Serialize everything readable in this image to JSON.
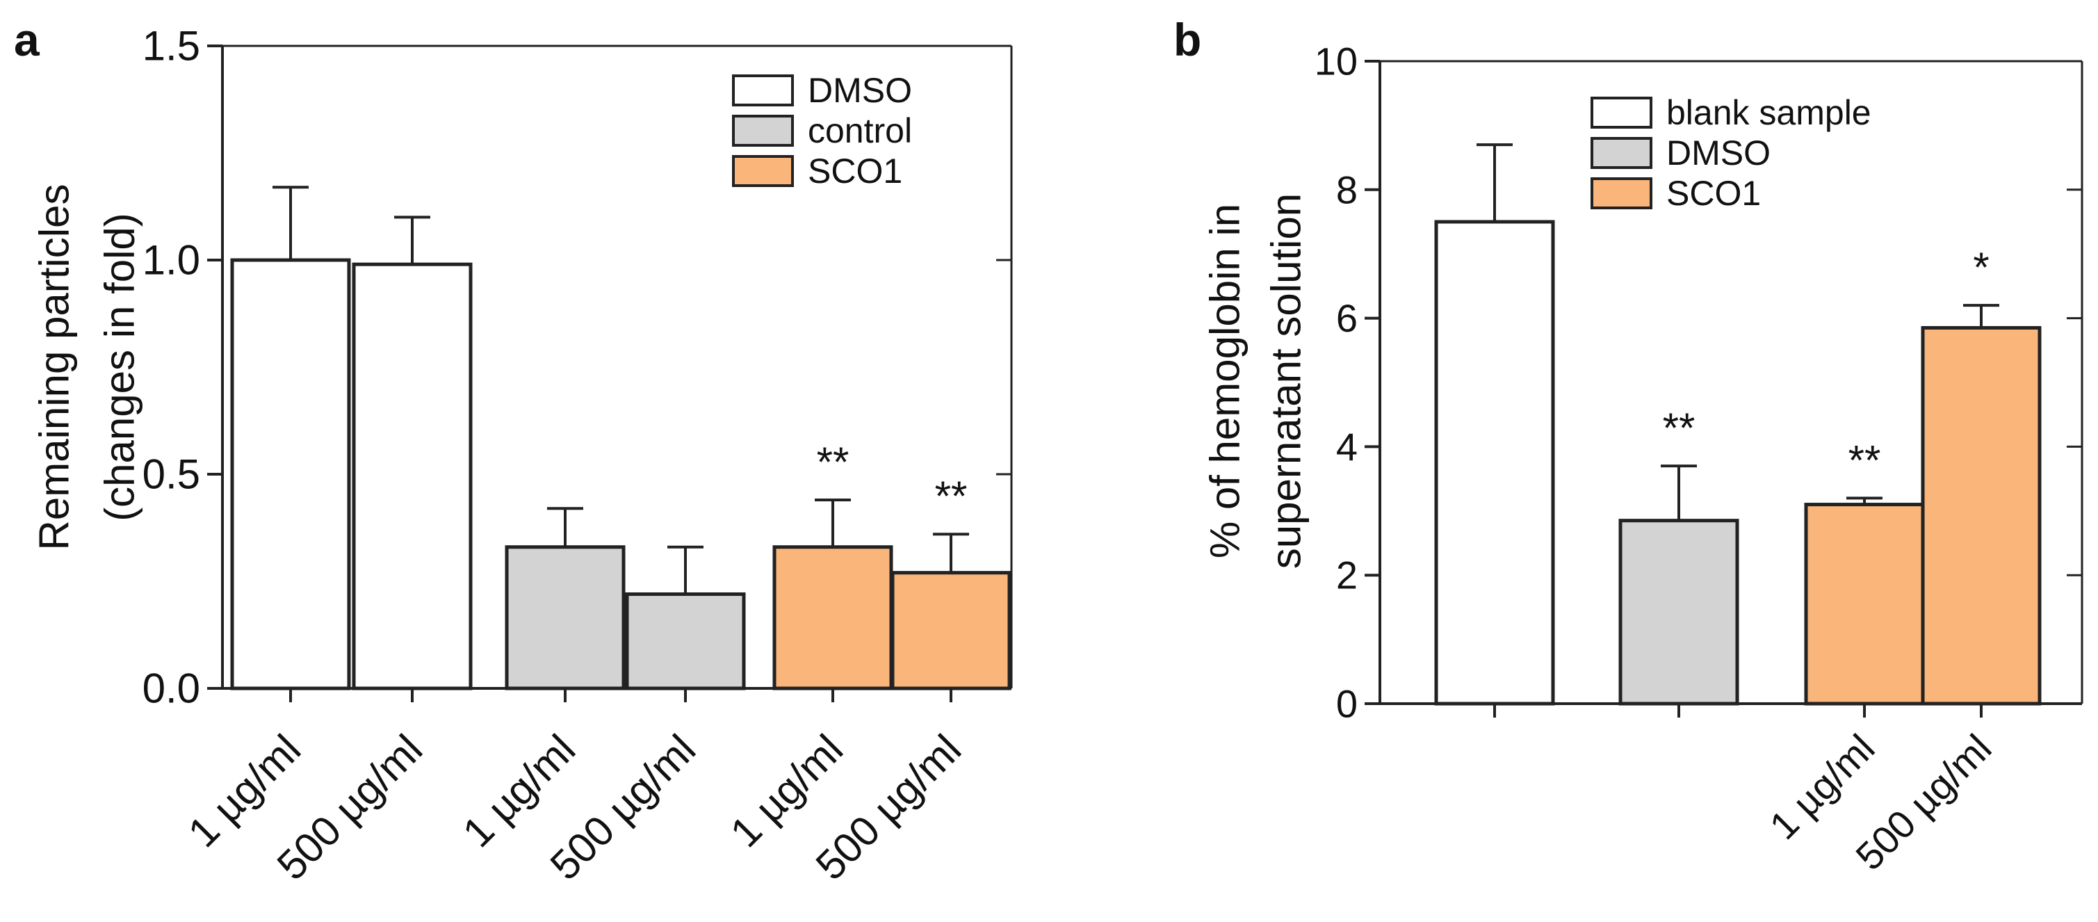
{
  "chart_data": [
    {
      "type": "bar",
      "panel_label": "a",
      "ylabel_line1": "Remaining particles",
      "ylabel_line2": "(changes in fold)",
      "ylim": [
        0,
        1.5
      ],
      "yticks": [
        0,
        0.5,
        1.0,
        1.5
      ],
      "ytick_labels": [
        "0.0",
        "0.5",
        "1.0",
        "1.5"
      ],
      "categories": [
        "1 µg/ml",
        "500 µg/ml",
        "1 µg/ml",
        "500 µg/ml",
        "1 µg/ml",
        "500 µg/ml"
      ],
      "series": [
        {
          "name": "DMSO",
          "color": "#ffffff",
          "values": [
            1.0,
            0.99,
            null,
            null,
            null,
            null
          ],
          "errors": [
            0.17,
            0.11,
            null,
            null,
            null,
            null
          ],
          "annotations": [
            "",
            "",
            "",
            "",
            "",
            ""
          ]
        },
        {
          "name": "control",
          "color": "#d3d3d3",
          "values": [
            null,
            null,
            0.33,
            0.22,
            null,
            null
          ],
          "errors": [
            null,
            null,
            0.09,
            0.11,
            null,
            null
          ],
          "annotations": [
            "",
            "",
            "",
            "",
            "",
            ""
          ]
        },
        {
          "name": "SCO1",
          "color": "#fab57a",
          "values": [
            null,
            null,
            null,
            null,
            0.33,
            0.27
          ],
          "errors": [
            null,
            null,
            null,
            null,
            0.11,
            0.09
          ],
          "annotations": [
            "",
            "",
            "",
            "",
            "**",
            "**"
          ]
        }
      ],
      "legend": [
        "DMSO",
        "control",
        "SCO1"
      ],
      "legend_placement": "top-right"
    },
    {
      "type": "bar",
      "panel_label": "b",
      "ylabel_line1": "% of hemoglobin in",
      "ylabel_line2": "supernatant solution",
      "ylim": [
        0,
        10
      ],
      "yticks": [
        0,
        2,
        4,
        6,
        8,
        10
      ],
      "ytick_labels": [
        "0",
        "2",
        "4",
        "6",
        "8",
        "10"
      ],
      "categories": [
        "",
        "",
        "1 µg/ml",
        "500 µg/ml"
      ],
      "series": [
        {
          "name": "blank sample",
          "color": "#ffffff",
          "values": [
            7.5,
            null,
            null,
            null
          ],
          "errors": [
            1.2,
            null,
            null,
            null
          ],
          "annotations": [
            "",
            "",
            "",
            ""
          ]
        },
        {
          "name": "DMSO",
          "color": "#d3d3d3",
          "values": [
            null,
            2.85,
            null,
            null
          ],
          "errors": [
            null,
            0.85,
            null,
            null
          ],
          "annotations": [
            "",
            "**",
            "",
            ""
          ]
        },
        {
          "name": "SCO1",
          "color": "#fab57a",
          "values": [
            null,
            null,
            3.1,
            5.85
          ],
          "errors": [
            null,
            null,
            0.1,
            0.35
          ],
          "annotations": [
            "",
            "",
            "**",
            "*"
          ]
        }
      ],
      "legend": [
        "blank sample",
        "DMSO",
        "SCO1"
      ],
      "legend_placement": "top-right"
    }
  ]
}
